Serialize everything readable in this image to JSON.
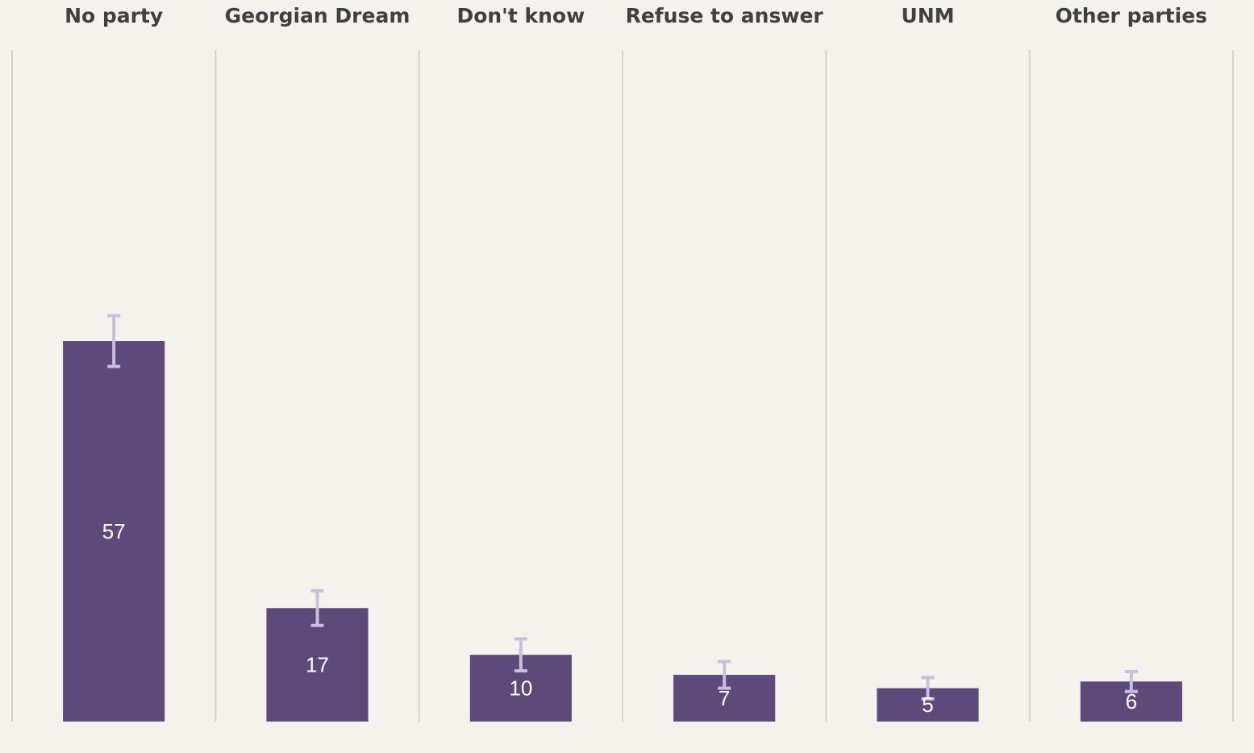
{
  "chart_data": {
    "type": "bar",
    "categories": [
      "No party",
      "Georgian Dream",
      "Don't know",
      "Refuse to answer",
      "UNM",
      "Other parties"
    ],
    "values": [
      57,
      17,
      10,
      7,
      5,
      6
    ],
    "errors": [
      3.8,
      2.6,
      2.4,
      2.0,
      1.6,
      1.5
    ],
    "color": "#5e4a7a",
    "error_color": "#c9bedd",
    "ylim": [
      0,
      100
    ]
  }
}
